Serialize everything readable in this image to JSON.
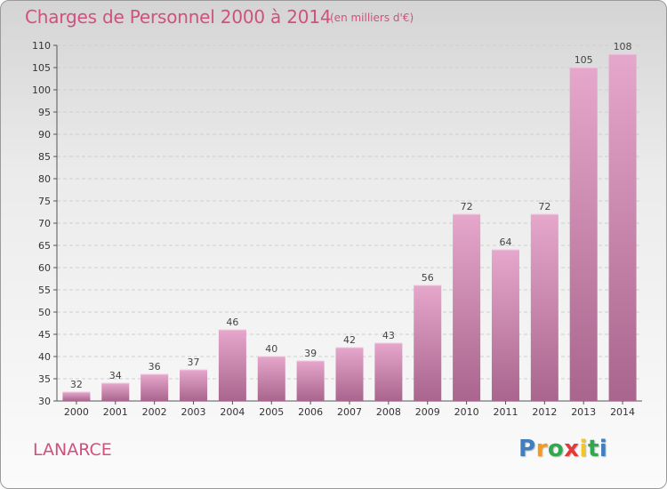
{
  "header": {
    "title": "Charges de Personnel 2000 à 2014",
    "subtitle": "(en milliers d'€)"
  },
  "footer": {
    "location": "LANARCE",
    "logo": {
      "p": "P",
      "r": "r",
      "o": "o",
      "x": "x",
      "i": "i",
      "t": "t",
      "i2": "i"
    }
  },
  "colors": {
    "title": "#d0507e",
    "bar_top": "#e6a7cc",
    "bar_bottom": "#a9658d",
    "logo": [
      "#3d7fc0",
      "#f39a22",
      "#2fa84f",
      "#e23a3a",
      "#f3c722",
      "#2fa84f",
      "#3d7fc0"
    ]
  },
  "chart_data": {
    "type": "bar",
    "title": "Charges de Personnel 2000 à 2014",
    "subtitle": "(en milliers d'€)",
    "categories": [
      "2000",
      "2001",
      "2002",
      "2003",
      "2004",
      "2005",
      "2006",
      "2007",
      "2008",
      "2009",
      "2010",
      "2011",
      "2012",
      "2013",
      "2014"
    ],
    "values": [
      32,
      34,
      36,
      37,
      46,
      40,
      39,
      42,
      43,
      56,
      72,
      64,
      72,
      105,
      108
    ],
    "ylim": [
      30,
      110
    ],
    "yticks": [
      30,
      35,
      40,
      45,
      50,
      55,
      60,
      65,
      70,
      75,
      80,
      85,
      90,
      95,
      100,
      105,
      110
    ],
    "grid": true,
    "legend": "none"
  }
}
